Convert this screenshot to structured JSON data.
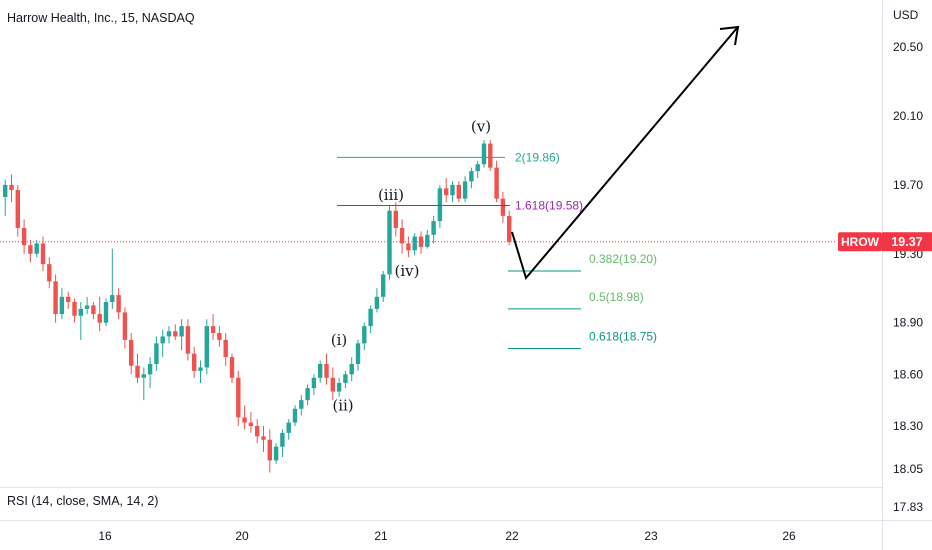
{
  "header": {
    "title": "Harrow Health, Inc., 15, NASDAQ",
    "currency": "USD"
  },
  "price_tag": {
    "symbol": "HROW",
    "price": "19.37",
    "color": "#f23645"
  },
  "rsi_label": "RSI (14, close, SMA, 14, 2)",
  "colors": {
    "up": "#26a69a",
    "down": "#ef5350",
    "fib_ext_green": "#22ab94",
    "fib_ext_magenta": "#9c27b0",
    "fib_ret": "#089981",
    "fib_ret_light": "#66bb6a",
    "price_line": "#f23645"
  },
  "chart_data": {
    "type": "candlestick",
    "title": "Harrow Health, Inc., 15, NASDAQ",
    "y_axis": {
      "unit": "USD",
      "ticks": [
        20.5,
        20.1,
        19.7,
        19.3,
        18.9,
        18.6,
        18.3,
        18.05,
        17.83
      ],
      "tick_labels": [
        "20.50",
        "20.10",
        "19.70",
        "19.30",
        "18.90",
        "18.60",
        "18.30",
        "18.05",
        "17.83"
      ],
      "range": [
        17.78,
        20.9
      ]
    },
    "x_axis": {
      "tick_labels": [
        "16",
        "20",
        "21",
        "22",
        "23",
        "26"
      ]
    },
    "last_price": 19.37,
    "candles": [
      [
        19.63,
        19.73,
        19.52,
        19.7
      ],
      [
        19.7,
        19.76,
        19.6,
        19.67
      ],
      [
        19.67,
        19.7,
        19.4,
        19.45
      ],
      [
        19.45,
        19.5,
        19.3,
        19.35
      ],
      [
        19.35,
        19.38,
        19.25,
        19.3
      ],
      [
        19.3,
        19.38,
        19.28,
        19.36
      ],
      [
        19.36,
        19.4,
        19.2,
        19.24
      ],
      [
        19.24,
        19.28,
        19.1,
        19.14
      ],
      [
        19.14,
        19.18,
        18.9,
        18.95
      ],
      [
        18.95,
        19.1,
        18.92,
        19.05
      ],
      [
        19.05,
        19.08,
        18.98,
        19.02
      ],
      [
        19.02,
        19.04,
        18.9,
        18.94
      ],
      [
        18.94,
        19.02,
        18.8,
        18.98
      ],
      [
        18.98,
        19.05,
        18.95,
        19.0
      ],
      [
        19.0,
        19.02,
        18.92,
        18.95
      ],
      [
        18.95,
        19.05,
        18.85,
        18.9
      ],
      [
        18.9,
        19.04,
        18.88,
        19.02
      ],
      [
        19.02,
        19.33,
        18.98,
        19.06
      ],
      [
        19.06,
        19.1,
        18.92,
        18.96
      ],
      [
        18.96,
        18.99,
        18.75,
        18.8
      ],
      [
        18.8,
        18.84,
        18.6,
        18.65
      ],
      [
        18.65,
        18.72,
        18.55,
        18.58
      ],
      [
        18.58,
        18.64,
        18.45,
        18.6
      ],
      [
        18.6,
        18.7,
        18.52,
        18.66
      ],
      [
        18.66,
        18.82,
        18.62,
        18.78
      ],
      [
        18.78,
        18.86,
        18.7,
        18.82
      ],
      [
        18.82,
        18.88,
        18.78,
        18.85
      ],
      [
        18.85,
        18.89,
        18.8,
        18.82
      ],
      [
        18.82,
        18.92,
        18.74,
        18.88
      ],
      [
        18.88,
        18.92,
        18.68,
        18.72
      ],
      [
        18.72,
        18.76,
        18.58,
        18.62
      ],
      [
        18.62,
        18.68,
        18.55,
        18.64
      ],
      [
        18.64,
        18.92,
        18.6,
        18.88
      ],
      [
        18.88,
        18.95,
        18.8,
        18.84
      ],
      [
        18.84,
        18.88,
        18.76,
        18.8
      ],
      [
        18.8,
        18.84,
        18.65,
        18.7
      ],
      [
        18.7,
        18.72,
        18.55,
        18.58
      ],
      [
        18.58,
        18.62,
        18.3,
        18.35
      ],
      [
        18.35,
        18.42,
        18.28,
        18.32
      ],
      [
        18.32,
        18.38,
        18.26,
        18.3
      ],
      [
        18.3,
        18.34,
        18.2,
        18.24
      ],
      [
        18.24,
        18.3,
        18.15,
        18.22
      ],
      [
        18.22,
        18.28,
        18.03,
        18.1
      ],
      [
        18.1,
        18.2,
        18.08,
        18.18
      ],
      [
        18.18,
        18.28,
        18.12,
        18.26
      ],
      [
        18.26,
        18.34,
        18.22,
        18.32
      ],
      [
        18.32,
        18.42,
        18.3,
        18.4
      ],
      [
        18.4,
        18.48,
        18.36,
        18.45
      ],
      [
        18.45,
        18.54,
        18.42,
        18.52
      ],
      [
        18.52,
        18.6,
        18.48,
        18.58
      ],
      [
        18.58,
        18.68,
        18.55,
        18.66
      ],
      [
        18.66,
        18.72,
        18.54,
        18.58
      ],
      [
        18.58,
        18.64,
        18.45,
        18.5
      ],
      [
        18.5,
        18.58,
        18.47,
        18.55
      ],
      [
        18.55,
        18.62,
        18.52,
        18.6
      ],
      [
        18.6,
        18.7,
        18.56,
        18.66
      ],
      [
        18.66,
        18.8,
        18.62,
        18.78
      ],
      [
        18.78,
        18.9,
        18.74,
        18.88
      ],
      [
        18.88,
        19.0,
        18.84,
        18.98
      ],
      [
        18.98,
        19.1,
        18.96,
        19.05
      ],
      [
        19.05,
        19.2,
        19.02,
        19.18
      ],
      [
        19.18,
        19.58,
        19.15,
        19.55
      ],
      [
        19.55,
        19.6,
        19.4,
        19.45
      ],
      [
        19.45,
        19.5,
        19.3,
        19.36
      ],
      [
        19.36,
        19.4,
        19.28,
        19.32
      ],
      [
        19.32,
        19.42,
        19.29,
        19.4
      ],
      [
        19.4,
        19.43,
        19.3,
        19.34
      ],
      [
        19.34,
        19.44,
        19.33,
        19.41
      ],
      [
        19.41,
        19.52,
        19.36,
        19.49
      ],
      [
        19.49,
        19.7,
        19.45,
        19.68
      ],
      [
        19.68,
        19.74,
        19.6,
        19.64
      ],
      [
        19.64,
        19.72,
        19.6,
        19.7
      ],
      [
        19.7,
        19.72,
        19.6,
        19.62
      ],
      [
        19.62,
        19.75,
        19.6,
        19.72
      ],
      [
        19.72,
        19.8,
        19.68,
        19.78
      ],
      [
        19.78,
        19.84,
        19.74,
        19.82
      ],
      [
        19.82,
        19.96,
        19.8,
        19.94
      ],
      [
        19.94,
        19.96,
        19.78,
        19.8
      ],
      [
        19.8,
        19.84,
        19.6,
        19.62
      ],
      [
        19.62,
        19.66,
        19.48,
        19.52
      ],
      [
        19.52,
        19.55,
        19.35,
        19.37
      ]
    ],
    "annotations": {
      "wave_labels": [
        {
          "text": "(i)",
          "price": 18.8
        },
        {
          "text": "(ii)",
          "price": 18.42
        },
        {
          "text": "(iii)",
          "price": 19.64
        },
        {
          "text": "(iv)",
          "price": 19.2
        },
        {
          "text": "(v)",
          "price": 20.04
        }
      ],
      "fib_extensions": [
        {
          "label": "2(19.86)",
          "price": 19.86
        },
        {
          "label": "1.618(19.58)",
          "price": 19.58
        }
      ],
      "fib_retracements": [
        {
          "label": "0.382(19.20)",
          "price": 19.2
        },
        {
          "label": "0.5(18.98)",
          "price": 18.98
        },
        {
          "label": "0.618(18.75)",
          "price": 18.75
        }
      ]
    }
  }
}
